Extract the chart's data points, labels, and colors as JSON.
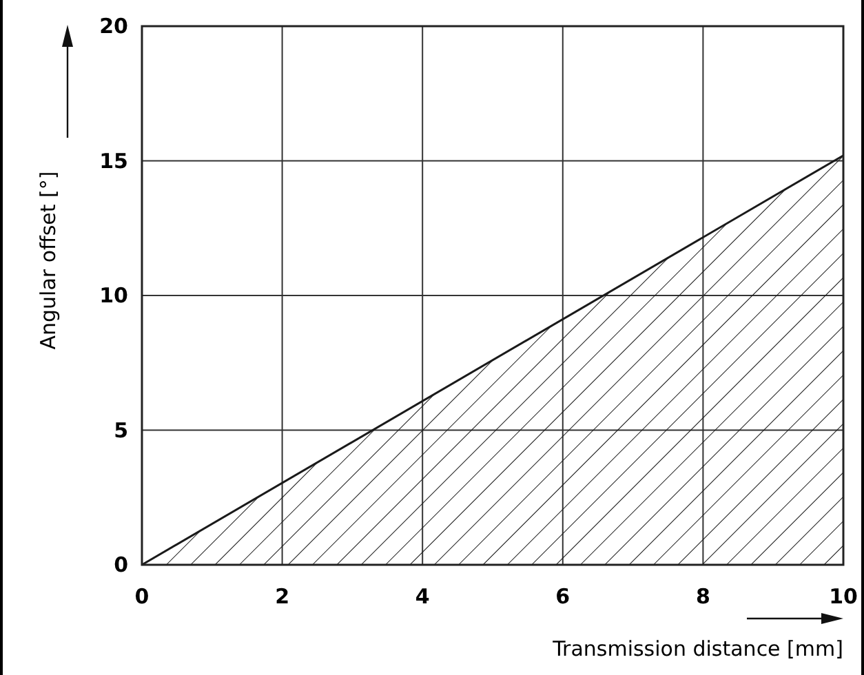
{
  "chart_data": {
    "type": "area",
    "xlabel": "Transmission distance  [mm]",
    "ylabel": "Angular offset [°]",
    "x": [
      0,
      10
    ],
    "series": [
      {
        "color": "#1a1a1a",
        "values": [
          0,
          15.2
        ]
      }
    ],
    "xlim": [
      0,
      10
    ],
    "ylim": [
      0,
      20
    ],
    "xticks": [
      0,
      2,
      4,
      6,
      8,
      10
    ],
    "yticks": [
      0,
      5,
      10,
      15,
      20
    ],
    "grid": true
  }
}
